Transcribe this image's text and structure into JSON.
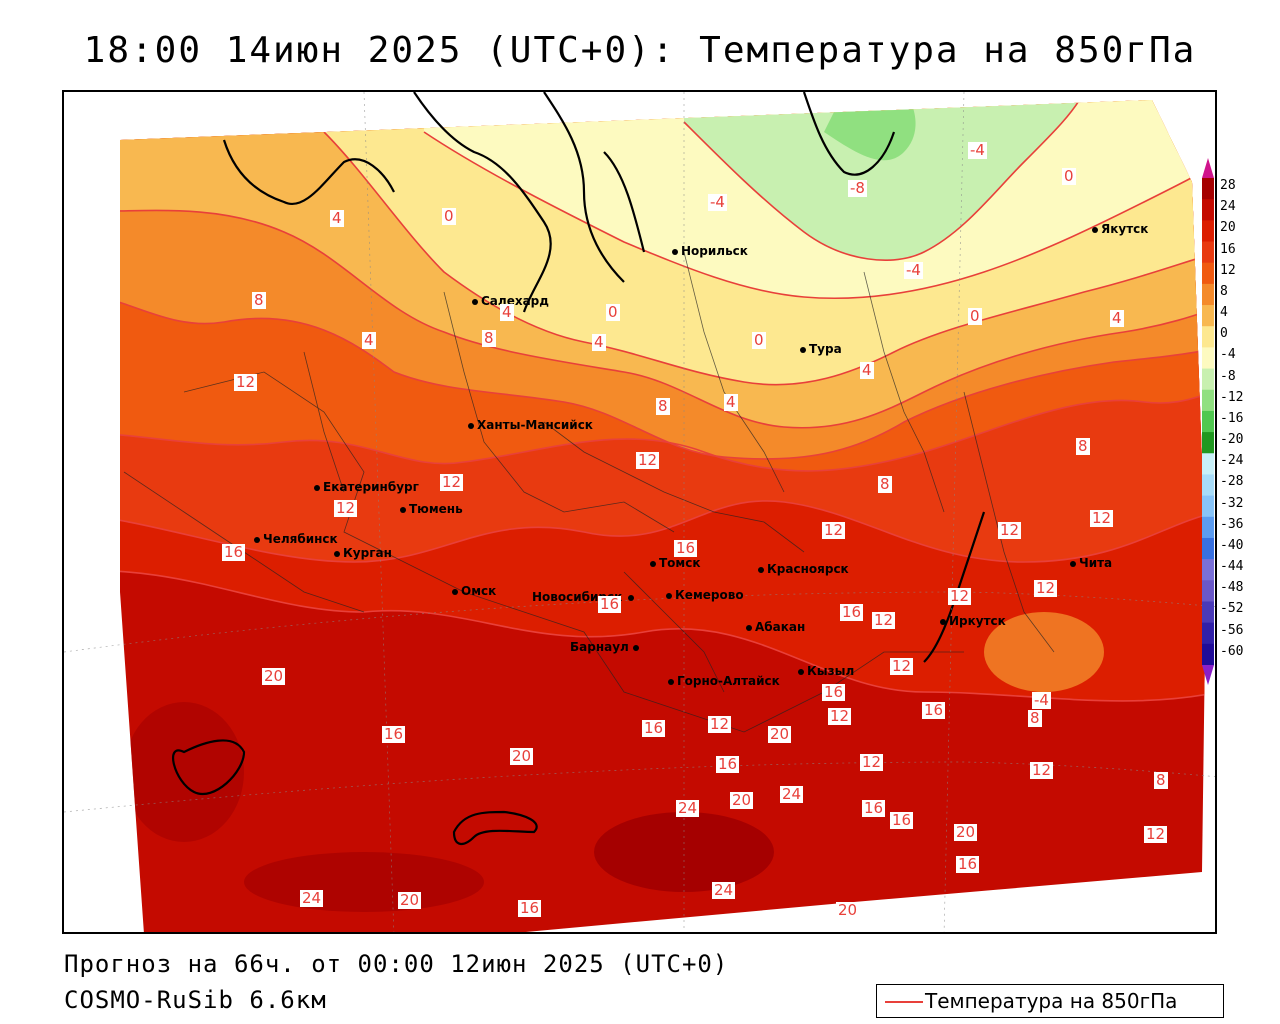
{
  "title": "18:00 14июн 2025 (UTC+0): Температура на 850гПа",
  "forecast_line": "Прогноз на 66ч. от 00:00 12июн 2025 (UTC+0)",
  "model_line": "COSMO-RuSib 6.6км",
  "legend_label": "Температура на 850гПа",
  "colors": {
    "contour": "#e8403a",
    "land_outline": "#000000"
  },
  "scale": {
    "ticks": [
      "28",
      "24",
      "20",
      "16",
      "12",
      "8",
      "4",
      "0",
      "-4",
      "-8",
      "-12",
      "-16",
      "-20",
      "-24",
      "-28",
      "-32",
      "-36",
      "-40",
      "-44",
      "-48",
      "-52",
      "-56",
      "-60"
    ],
    "colors": [
      "#a50000",
      "#c40a00",
      "#dc1e00",
      "#e83a10",
      "#f05a10",
      "#f48a2a",
      "#f8b850",
      "#fde890",
      "#fdfac0",
      "#c8f0b0",
      "#90e080",
      "#50c850",
      "#209820",
      "#c8f0f8",
      "#a8dcf8",
      "#88c4f8",
      "#5c9cf0",
      "#3870e0",
      "#7a70d8",
      "#6a58c8",
      "#4a3ab8",
      "#3020a8",
      "#200c98"
    ]
  },
  "cities": [
    {
      "name": "Норильск"
    },
    {
      "name": "Якутск"
    },
    {
      "name": "Салехард"
    },
    {
      "name": "Тура"
    },
    {
      "name": "Ханты-Мансийск"
    },
    {
      "name": "Екатеринбург"
    },
    {
      "name": "Тюмень"
    },
    {
      "name": "Челябинск"
    },
    {
      "name": "Курган"
    },
    {
      "name": "Томск"
    },
    {
      "name": "Красноярск"
    },
    {
      "name": "Омск"
    },
    {
      "name": "Новосибирск"
    },
    {
      "name": "Кемерово"
    },
    {
      "name": "Абакан"
    },
    {
      "name": "Барнаул"
    },
    {
      "name": "Иркутск"
    },
    {
      "name": "Чита"
    },
    {
      "name": "Кызыл"
    },
    {
      "name": "Горно-Алтайск"
    }
  ],
  "contour_labels": [
    "4",
    "0",
    "-4",
    "-8",
    "-4",
    "0",
    "-4",
    "0",
    "4",
    "8",
    "4",
    "8",
    "0",
    "4",
    "0",
    "4",
    "4",
    "8",
    "12",
    "8",
    "4",
    "12",
    "12",
    "8",
    "8",
    "16",
    "12",
    "16",
    "16",
    "12",
    "12",
    "12",
    "16",
    "12",
    "16",
    "12",
    "12",
    "12",
    "20",
    "16",
    "20",
    "16",
    "16",
    "12",
    "12",
    "16",
    "24",
    "20",
    "24",
    "16",
    "16",
    "20",
    "12",
    "12",
    "20",
    "16",
    "24",
    "20",
    "16",
    "24",
    "20",
    "8",
    "12",
    "-4"
  ]
}
